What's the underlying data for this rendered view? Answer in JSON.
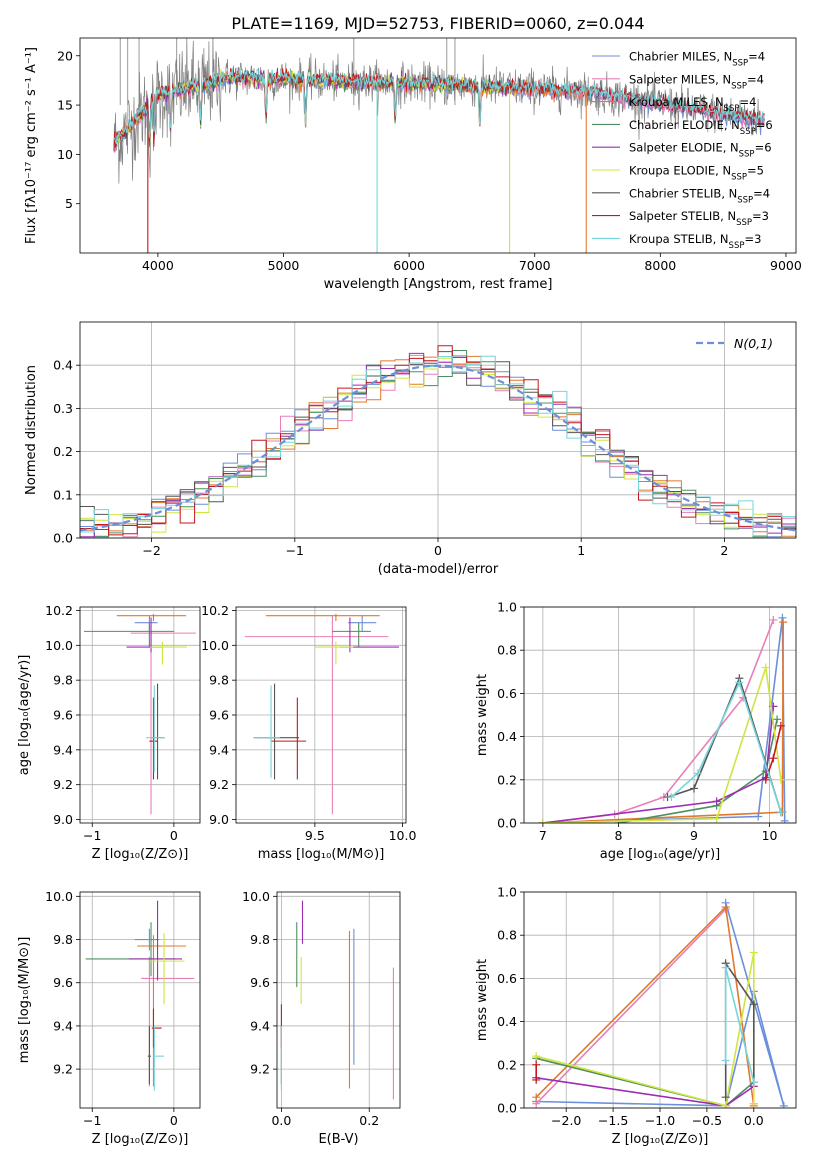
{
  "figure": {
    "title": "PLATE=1169, MJD=52753, FIBERID=0060, z=0.044",
    "model_colors": [
      "#6b8fdb",
      "#e87fb8",
      "#e2782b",
      "#4f8f5f",
      "#9c2eb0",
      "#cfe642",
      "#555555",
      "#c2181e",
      "#74d6dc"
    ]
  },
  "chart_data": [
    {
      "id": "spectrum",
      "type": "line",
      "xlabel": "wavelength [Angstrom, rest frame]",
      "ylabel": "Flux [fλ10⁻¹⁷ erg cm⁻² s⁻¹ A⁻¹]",
      "xlim": [
        3380,
        9080
      ],
      "ylim": [
        0,
        21.8
      ],
      "xticks": [
        4000,
        5000,
        6000,
        7000,
        8000,
        9000
      ],
      "yticks": [
        5,
        10,
        15,
        20
      ],
      "data_line": {
        "color": "#808080",
        "x_range": [
          3650,
          8830
        ]
      },
      "series": [
        {
          "name": "Chabrier MILES, N_SSP=4",
          "color": "#6b8fdb",
          "x_range": [
            3650,
            8830
          ]
        },
        {
          "name": "Salpeter MILES, N_SSP=4",
          "color": "#e87fb8",
          "x_range": [
            3650,
            8830
          ]
        },
        {
          "name": "Kroupa MILES, N_SSP=4",
          "color": "#e2782b",
          "x_range": [
            3650,
            7420
          ]
        },
        {
          "name": "Chabrier ELODIE, N_SSP=6",
          "color": "#4f8f5f",
          "x_range": [
            3650,
            6800
          ]
        },
        {
          "name": "Salpeter ELODIE, N_SSP=6",
          "color": "#9c2eb0",
          "x_range": [
            3650,
            6800
          ]
        },
        {
          "name": "Kroupa ELODIE, N_SSP=5",
          "color": "#cfe642",
          "x_range": [
            3650,
            6800
          ]
        },
        {
          "name": "Chabrier STELIB, N_SSP=4",
          "color": "#555555",
          "x_range": [
            3650,
            8830
          ]
        },
        {
          "name": "Salpeter STELIB, N_SSP=3",
          "color": "#c2181e",
          "x_range": [
            3650,
            8830
          ]
        },
        {
          "name": "Kroupa STELIB, N_SSP=3",
          "color": "#74d6dc",
          "x_range": [
            3650,
            8830
          ]
        }
      ],
      "legend_labels": [
        {
          "pre": "Chabrier MILES, N",
          "sub": "SSP",
          "post": "=4"
        },
        {
          "pre": "Salpeter MILES, N",
          "sub": "SSP",
          "post": "=4"
        },
        {
          "pre": "Kroupa MILES, N",
          "sub": "SSP",
          "post": "=4"
        },
        {
          "pre": "Chabrier ELODIE, N",
          "sub": "SSP",
          "post": "=6"
        },
        {
          "pre": "Salpeter ELODIE, N",
          "sub": "SSP",
          "post": "=6"
        },
        {
          "pre": "Kroupa ELODIE, N",
          "sub": "SSP",
          "post": "=5"
        },
        {
          "pre": "Chabrier STELIB, N",
          "sub": "SSP",
          "post": "=4"
        },
        {
          "pre": "Salpeter STELIB, N",
          "sub": "SSP",
          "post": "=3"
        },
        {
          "pre": "Kroupa STELIB, N",
          "sub": "SSP",
          "post": "=3"
        }
      ],
      "legend_position": "top-right"
    },
    {
      "id": "residuals",
      "type": "histogram",
      "xlabel": "(data-model)/error",
      "ylabel": "Normed distribution",
      "xlim": [
        -2.5,
        2.5
      ],
      "ylim": [
        0,
        0.5
      ],
      "xticks": [
        -2,
        -1,
        0,
        1,
        2
      ],
      "xticklabels": [
        "−2",
        "−1",
        "0",
        "1",
        "2"
      ],
      "yticks": [
        0.0,
        0.1,
        0.2,
        0.3,
        0.4
      ],
      "reference_curve": {
        "label": "N(0,1)",
        "color": "#6b8fdb",
        "style": "dashed"
      },
      "legend_position": "top-right",
      "grid": true
    },
    {
      "id": "age_vs_Z",
      "type": "errorbar",
      "xlabel": "Z [log₁₀(Z/Z⊙)]",
      "ylabel": "age  [log₁₀(age/yr)]",
      "xlim": [
        -1.15,
        0.32
      ],
      "ylim": [
        8.98,
        10.22
      ],
      "xticks": [
        -1,
        0
      ],
      "xticklabels": [
        "−1",
        "0"
      ],
      "yticks": [
        9.0,
        9.2,
        9.4,
        9.6,
        9.8,
        10.0,
        10.2
      ],
      "points": [
        {
          "color": "#6b8fdb",
          "x": -0.3,
          "xerr": [
            0.18,
            0.1
          ],
          "y": 10.13,
          "yerr": [
            0.05,
            0.04
          ]
        },
        {
          "color": "#e87fb8",
          "x": -0.28,
          "xerr": [
            0.25,
            0.55
          ],
          "y": 10.07,
          "yerr": [
            1.04,
            0.05
          ]
        },
        {
          "color": "#e2782b",
          "x": -0.25,
          "xerr": [
            0.45,
            0.4
          ],
          "y": 10.17,
          "yerr": [
            0.03,
            0.01
          ]
        },
        {
          "color": "#4f8f5f",
          "x": -0.3,
          "xerr": [
            0.8,
            0.3
          ],
          "y": 10.08,
          "yerr": [
            0.09,
            0.05
          ]
        },
        {
          "color": "#9c2eb0",
          "x": -0.28,
          "xerr": [
            0.3,
            0.15
          ],
          "y": 9.99,
          "yerr": [
            0.03,
            0.17
          ]
        },
        {
          "color": "#cfe642",
          "x": -0.14,
          "xerr": [
            0.15,
            0.3
          ],
          "y": 9.99,
          "yerr": [
            0.1,
            0.03
          ]
        },
        {
          "color": "#555555",
          "x": -0.2,
          "xerr": [
            0.08,
            0.08
          ],
          "y": 9.47,
          "yerr": [
            0.24,
            0.31
          ]
        },
        {
          "color": "#c2181e",
          "x": -0.25,
          "xerr": [
            0.05,
            0.05
          ],
          "y": 9.45,
          "yerr": [
            0.22,
            0.25
          ]
        },
        {
          "color": "#74d6dc",
          "x": -0.24,
          "xerr": [
            0.1,
            0.13
          ],
          "y": 9.47,
          "yerr": [
            0.2,
            0.3
          ]
        }
      ],
      "grid": true
    },
    {
      "id": "age_vs_mass",
      "type": "errorbar",
      "xlabel": "mass [log₁₀(M/M⊙)]",
      "ylabel": "",
      "xlim": [
        9.05,
        10.02
      ],
      "ylim": [
        8.98,
        10.22
      ],
      "xticks": [
        9.5,
        10.0
      ],
      "xticklabels": [
        "9.5",
        "10.0"
      ],
      "yticks": [
        9.0,
        9.2,
        9.4,
        9.6,
        9.8,
        10.0,
        10.2
      ],
      "points": [
        {
          "color": "#6b8fdb",
          "x": 9.77,
          "xerr": [
            0.08,
            0.08
          ],
          "y": 10.13,
          "yerr": [
            0.05,
            0.04
          ]
        },
        {
          "color": "#e87fb8",
          "x": 9.6,
          "xerr": [
            0.5,
            0.32
          ],
          "y": 10.05,
          "yerr": [
            1.02,
            0.12
          ]
        },
        {
          "color": "#e2782b",
          "x": 9.62,
          "xerr": [
            0.4,
            0.25
          ],
          "y": 10.17,
          "yerr": [
            0.03,
            0.01
          ]
        },
        {
          "color": "#4f8f5f",
          "x": 9.75,
          "xerr": [
            0.15,
            0.07
          ],
          "y": 10.08,
          "yerr": [
            0.09,
            0.05
          ]
        },
        {
          "color": "#9c2eb0",
          "x": 9.7,
          "xerr": [
            0.06,
            0.28
          ],
          "y": 9.99,
          "yerr": [
            0.03,
            0.17
          ]
        },
        {
          "color": "#cfe642",
          "x": 9.62,
          "xerr": [
            0.12,
            0.1
          ],
          "y": 9.99,
          "yerr": [
            0.1,
            0.03
          ]
        },
        {
          "color": "#555555",
          "x": 9.27,
          "xerr": [
            0.12,
            0.14
          ],
          "y": 9.47,
          "yerr": [
            0.24,
            0.31
          ]
        },
        {
          "color": "#c2181e",
          "x": 9.4,
          "xerr": [
            0.15,
            0.05
          ],
          "y": 9.45,
          "yerr": [
            0.22,
            0.25
          ]
        },
        {
          "color": "#74d6dc",
          "x": 9.25,
          "xerr": [
            0.1,
            0.05
          ],
          "y": 9.47,
          "yerr": [
            0.23,
            0.3
          ]
        }
      ],
      "grid": true
    },
    {
      "id": "weight_vs_age",
      "type": "line",
      "xlabel": "age  [log₁₀(age/yr)]",
      "ylabel": "mass weight",
      "xlim": [
        6.75,
        10.35
      ],
      "ylim": [
        0,
        1.0
      ],
      "xticks": [
        7,
        8,
        9,
        10
      ],
      "yticks": [
        0.0,
        0.2,
        0.4,
        0.6,
        0.8,
        1.0
      ],
      "series": [
        {
          "color": "#6b8fdb",
          "x": [
            7.0,
            9.85,
            10.17,
            10.2
          ],
          "y": [
            0.0,
            0.03,
            0.95,
            0.01
          ]
        },
        {
          "color": "#e87fb8",
          "x": [
            7.0,
            7.95,
            8.6,
            9.65,
            10.05
          ],
          "y": [
            0.0,
            0.04,
            0.12,
            0.58,
            0.94
          ]
        },
        {
          "color": "#e2782b",
          "x": [
            7.0,
            10.17,
            10.18
          ],
          "y": [
            0.0,
            0.05,
            0.93
          ]
        },
        {
          "color": "#4f8f5f",
          "x": [
            8.0,
            9.3,
            9.95,
            10.1
          ],
          "y": [
            0.0,
            0.08,
            0.24,
            0.48
          ]
        },
        {
          "color": "#9c2eb0",
          "x": [
            7.0,
            9.3,
            9.95,
            10.05
          ],
          "y": [
            0.0,
            0.1,
            0.21,
            0.54
          ]
        },
        {
          "color": "#cfe642",
          "x": [
            7.0,
            9.3,
            9.95,
            10.15
          ],
          "y": [
            0.0,
            0.02,
            0.72,
            0.2
          ]
        },
        {
          "color": "#555555",
          "x": [
            8.65,
            9.0,
            9.6,
            10.15
          ],
          "y": [
            0.12,
            0.16,
            0.67,
            0.05
          ]
        },
        {
          "color": "#c2181e",
          "x": [
            9.95,
            10.05,
            10.15
          ],
          "y": [
            0.2,
            0.3,
            0.45
          ]
        },
        {
          "color": "#74d6dc",
          "x": [
            8.7,
            9.05,
            9.6,
            10.15
          ],
          "y": [
            0.12,
            0.23,
            0.65,
            0.05
          ]
        }
      ],
      "grid": true
    },
    {
      "id": "mass_vs_Z",
      "type": "errorbar",
      "xlabel": "Z [log₁₀(Z/Z⊙)]",
      "ylabel": "mass [log₁₀(M/M⊙)]",
      "xlim": [
        -1.15,
        0.32
      ],
      "ylim": [
        9.02,
        10.02
      ],
      "xticks": [
        -1,
        0
      ],
      "xticklabels": [
        "−1",
        "0"
      ],
      "yticks": [
        9.2,
        9.4,
        9.6,
        9.8,
        10.0
      ],
      "points": [
        {
          "color": "#6b8fdb",
          "x": -0.3,
          "xerr": [
            0.18,
            0.12
          ],
          "y": 9.8,
          "yerr": [
            0.05,
            0.05
          ]
        },
        {
          "color": "#e87fb8",
          "x": -0.3,
          "xerr": [
            0.1,
            0.55
          ],
          "y": 9.62,
          "yerr": [
            0.5,
            0.1
          ]
        },
        {
          "color": "#e2782b",
          "x": -0.25,
          "xerr": [
            0.2,
            0.4
          ],
          "y": 9.77,
          "yerr": [
            0.65,
            0.05
          ]
        },
        {
          "color": "#4f8f5f",
          "x": -0.28,
          "xerr": [
            0.8,
            0.3
          ],
          "y": 9.71,
          "yerr": [
            0.08,
            0.17
          ]
        },
        {
          "color": "#9c2eb0",
          "x": -0.2,
          "xerr": [
            0.35,
            0.3
          ],
          "y": 9.71,
          "yerr": [
            0.1,
            0.27
          ]
        },
        {
          "color": "#cfe642",
          "x": -0.12,
          "xerr": [
            0.2,
            0.25
          ],
          "y": 9.7,
          "yerr": [
            0.2,
            0.13
          ]
        },
        {
          "color": "#555555",
          "x": -0.3,
          "xerr": [
            0.02,
            0.02
          ],
          "y": 9.26,
          "yerr": [
            0.13,
            0.14
          ]
        },
        {
          "color": "#c2181e",
          "x": -0.25,
          "xerr": [
            0.02,
            0.1
          ],
          "y": 9.39,
          "yerr": [
            0.09,
            0.09
          ]
        },
        {
          "color": "#74d6dc",
          "x": -0.24,
          "xerr": [
            0.02,
            0.12
          ],
          "y": 9.26,
          "yerr": [
            0.16,
            0.14
          ]
        }
      ],
      "grid": true
    },
    {
      "id": "mass_vs_EBV",
      "type": "errorbar",
      "xlabel": "E(B-V)",
      "ylabel": "",
      "xlim": [
        -0.01,
        0.27
      ],
      "ylim": [
        9.02,
        10.02
      ],
      "xticks": [
        0.0,
        0.2
      ],
      "xticklabels": [
        "0.0",
        "0.2"
      ],
      "yticks": [
        9.2,
        9.4,
        9.6,
        9.8,
        10.0
      ],
      "points": [
        {
          "color": "#6b8fdb",
          "x": 0.165,
          "y": 9.62,
          "yerr": [
            0.4,
            0.23
          ]
        },
        {
          "color": "#e87fb8",
          "x": 0.255,
          "y": 9.37,
          "yerr": [
            0.31,
            0.3
          ]
        },
        {
          "color": "#e2782b",
          "x": 0.155,
          "y": 9.47,
          "yerr": [
            0.36,
            0.37
          ]
        },
        {
          "color": "#4f8f5f",
          "x": 0.035,
          "y": 9.73,
          "yerr": [
            0.15,
            0.15
          ]
        },
        {
          "color": "#9c2eb0",
          "x": 0.048,
          "y": 9.88,
          "yerr": [
            0.1,
            0.1
          ]
        },
        {
          "color": "#cfe642",
          "x": 0.045,
          "y": 9.62,
          "yerr": [
            0.12,
            0.1
          ]
        },
        {
          "color": "#555555",
          "x": 0.0,
          "y": 9.26,
          "yerr": [
            0.13,
            0.14
          ]
        },
        {
          "color": "#c2181e",
          "x": 0.0,
          "y": 9.39,
          "yerr": [
            0.09,
            0.11
          ]
        },
        {
          "color": "#74d6dc",
          "x": 0.0,
          "y": 9.26,
          "yerr": [
            0.16,
            0.14
          ]
        }
      ],
      "grid": true
    },
    {
      "id": "weight_vs_Z",
      "type": "line",
      "xlabel": "Z [log₁₀(Z/Z⊙)]",
      "ylabel": "mass weight",
      "xlim": [
        -2.45,
        0.45
      ],
      "ylim": [
        0,
        1.0
      ],
      "xticks": [
        -2.0,
        -1.5,
        -1.0,
        -0.5,
        0.0
      ],
      "xticklabels": [
        "−2.0",
        "−1.5",
        "−1.0",
        "−0.5",
        "0.0"
      ],
      "yticks": [
        0.0,
        0.2,
        0.4,
        0.6,
        0.8,
        1.0
      ],
      "series": [
        {
          "color": "#6b8fdb",
          "x": [
            -2.32,
            -0.3,
            0.0,
            0.32,
            -0.3
          ],
          "y": [
            0.03,
            0.01,
            0.54,
            0.01,
            0.95
          ]
        },
        {
          "color": "#e87fb8",
          "x": [
            -2.32,
            -0.3
          ],
          "y": [
            0.02,
            0.92
          ]
        },
        {
          "color": "#e2782b",
          "x": [
            -2.32,
            -0.3,
            0.0,
            0.0
          ],
          "y": [
            0.05,
            0.93,
            0.01,
            0.02
          ]
        },
        {
          "color": "#4f8f5f",
          "x": [
            -2.32,
            -0.3,
            0.0
          ],
          "y": [
            0.23,
            0.01,
            0.12
          ]
        },
        {
          "color": "#9c2eb0",
          "x": [
            -2.32,
            -0.3,
            0.0
          ],
          "y": [
            0.14,
            0.01,
            0.1
          ]
        },
        {
          "color": "#cfe642",
          "x": [
            -2.32,
            -0.3,
            0.0,
            0.0
          ],
          "y": [
            0.24,
            0.01,
            0.72,
            0.02
          ]
        },
        {
          "color": "#555555",
          "x": [
            -0.3,
            -0.3,
            0.0,
            0.0
          ],
          "y": [
            0.05,
            0.67,
            0.48,
            0.12
          ]
        },
        {
          "color": "#c2181e",
          "x": [
            -2.32,
            -2.32
          ],
          "y": [
            0.13,
            0.2
          ]
        },
        {
          "color": "#74d6dc",
          "x": [
            -0.3,
            -0.3,
            0.0
          ],
          "y": [
            0.22,
            0.65,
            0.12
          ]
        }
      ],
      "grid": true
    }
  ]
}
